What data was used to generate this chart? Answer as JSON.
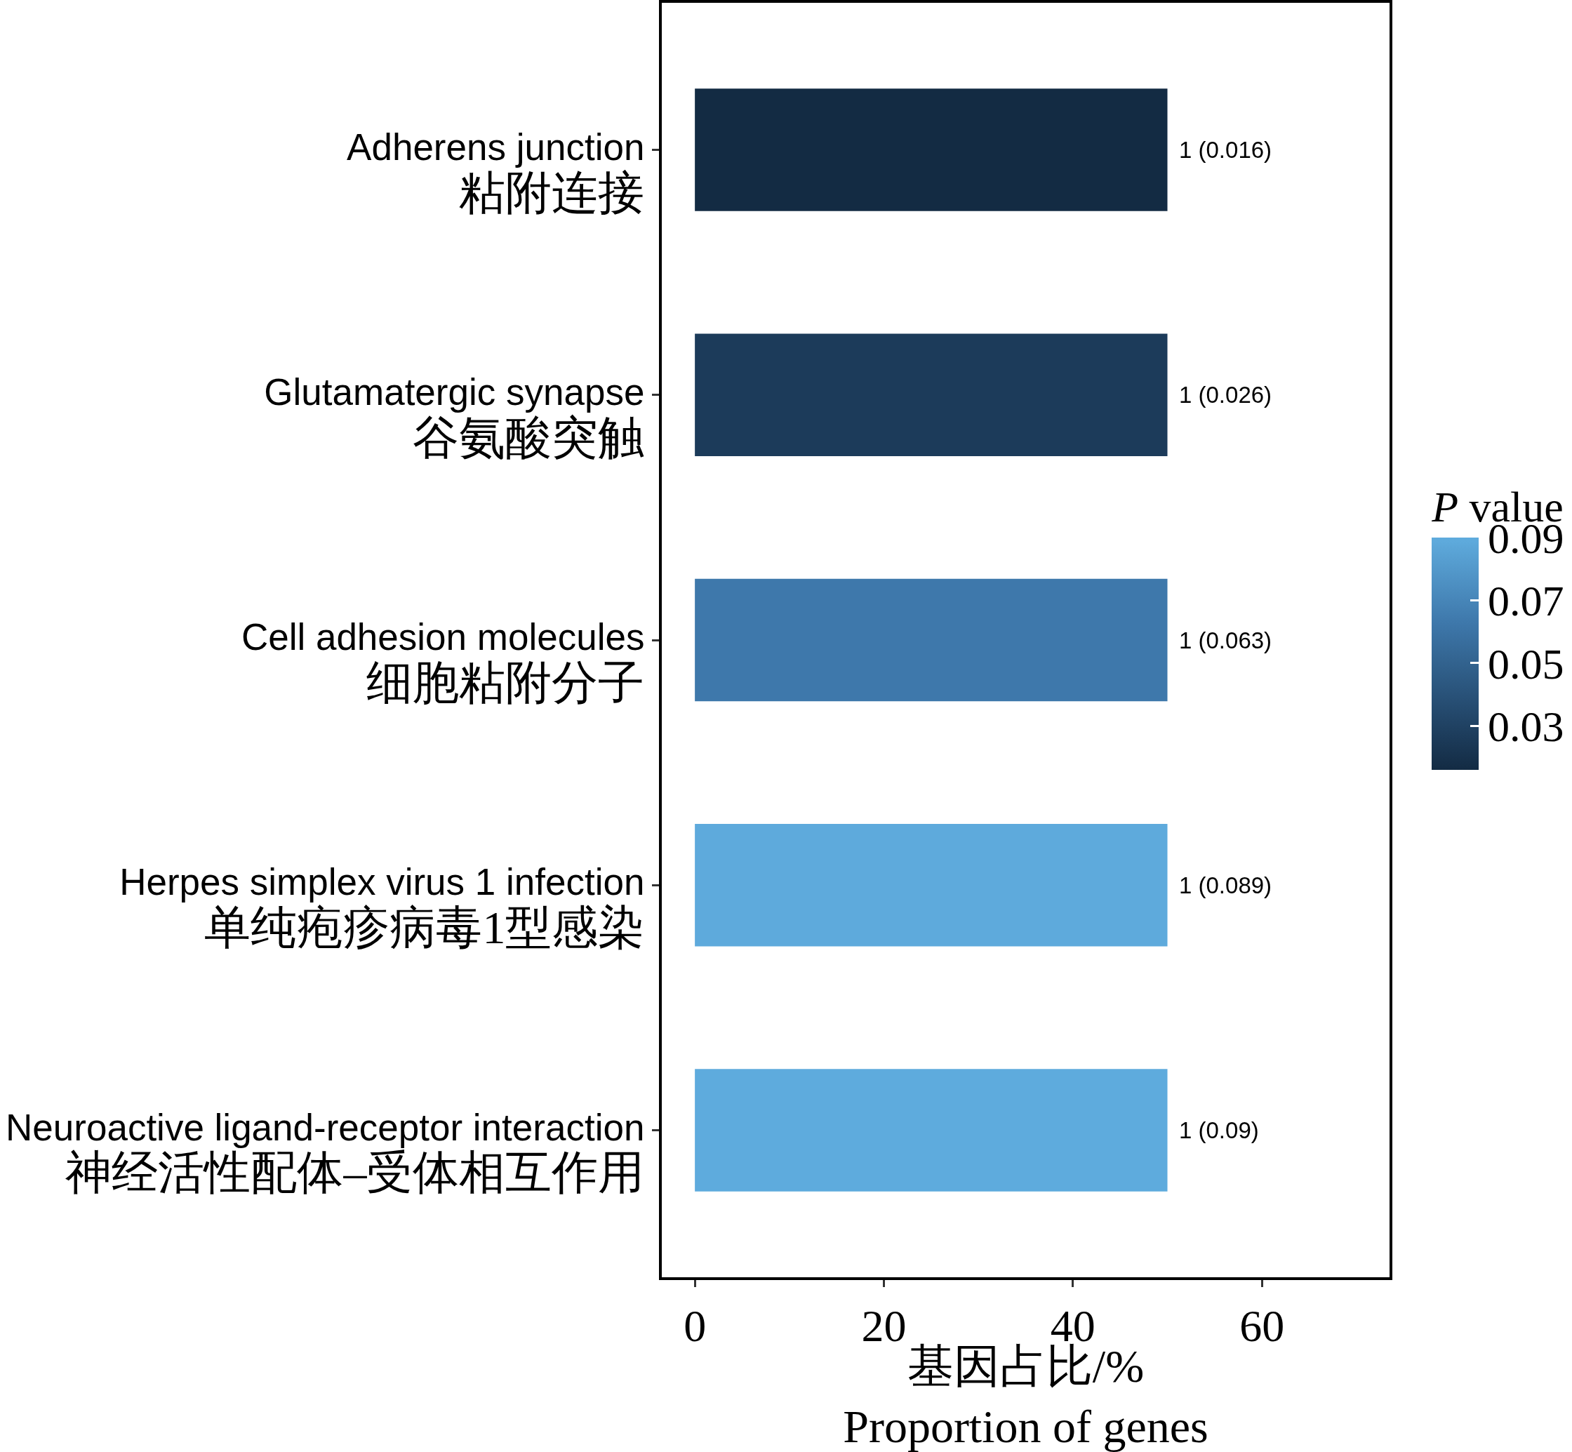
{
  "chart_data": {
    "type": "bar",
    "orientation": "horizontal",
    "categories": [
      "Adherens junction\n粘附连接",
      "Glutamatergic synapse\n谷氨酸突触",
      "Cell adhesion molecules\n细胞粘附分子",
      "Herpes simplex virus 1 infection\n单纯疱疹病毒1型感染",
      "Neuroactive ligand-receptor interaction\n神经活性配体–受体相互作用"
    ],
    "values": [
      50,
      50,
      50,
      50,
      50
    ],
    "colors": [
      "#132b43",
      "#1c3b5a",
      "#3e78ab",
      "#5eaadc",
      "#5eabdd"
    ],
    "cvalues": [
      0.016,
      0.026,
      0.063,
      0.089,
      0.09
    ],
    "annotations": [
      "1 (0.016)",
      "1 (0.026)",
      "1 (0.063)",
      "1 (0.089)",
      "1 (0.09)"
    ],
    "xlabel": "基因占比/%\nProportion of genes",
    "clabel": "P value",
    "clim": [
      0.016,
      0.09
    ],
    "cticks": [
      0.03,
      0.05,
      0.07,
      0.09
    ],
    "xlim": [
      -3.5,
      73.5
    ],
    "xticks": [
      0,
      20,
      40,
      60
    ]
  }
}
